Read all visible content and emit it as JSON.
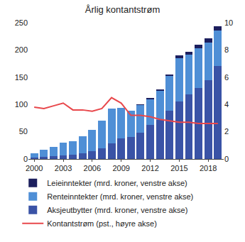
{
  "chart_data": {
    "type": "bar",
    "title": "Årlig kontantstrøm",
    "stacked": true,
    "grid": false,
    "legend": "bottom",
    "categories": [
      "2000",
      null,
      null,
      "2003",
      null,
      null,
      "2006",
      null,
      null,
      "2009",
      null,
      null,
      "2012",
      null,
      null,
      "2015",
      null,
      null,
      "2018",
      null
    ],
    "ylim": [
      0,
      250
    ],
    "yticks": [
      0,
      50,
      100,
      150,
      200,
      250
    ],
    "y2lim": [
      0,
      10
    ],
    "y2ticks": [
      0,
      2,
      4,
      6,
      8,
      10
    ],
    "series": [
      {
        "name": "Leieinntekter (mrd. kroner, venstre akse)",
        "type": "bar",
        "color": "#1c1f5e",
        "values": [
          0,
          0,
          0,
          0,
          0,
          0,
          0,
          0,
          0,
          0,
          0,
          1,
          2,
          3,
          3,
          5,
          6,
          7,
          7,
          7
        ]
      },
      {
        "name": "Renteinntekter (mrd. kroner, venstre akse)",
        "type": "bar",
        "color": "#4f8fd6",
        "values": [
          7,
          13,
          17,
          23,
          25,
          32,
          40,
          50,
          63,
          56,
          48,
          51,
          48,
          53,
          64,
          79,
          73,
          73,
          69,
          66
        ]
      },
      {
        "name": "Aksjeutbytter (mrd. kroner, venstre akse)",
        "type": "bar",
        "color": "#3a53a6",
        "values": [
          3,
          4,
          5,
          7,
          8,
          10,
          14,
          20,
          29,
          38,
          40,
          48,
          62,
          72,
          88,
          106,
          118,
          130,
          145,
          170
        ]
      },
      {
        "name": "Kontantstrøm (pst., høyre akse)",
        "type": "line",
        "axis": "y2",
        "color": "#e8474b",
        "values": [
          3.8,
          3.7,
          3.9,
          4.1,
          3.6,
          3.6,
          3.5,
          3.7,
          4.5,
          4.1,
          3.2,
          3.2,
          3.1,
          2.9,
          2.8,
          2.7,
          2.7,
          2.6,
          2.6,
          2.6
        ]
      }
    ]
  }
}
